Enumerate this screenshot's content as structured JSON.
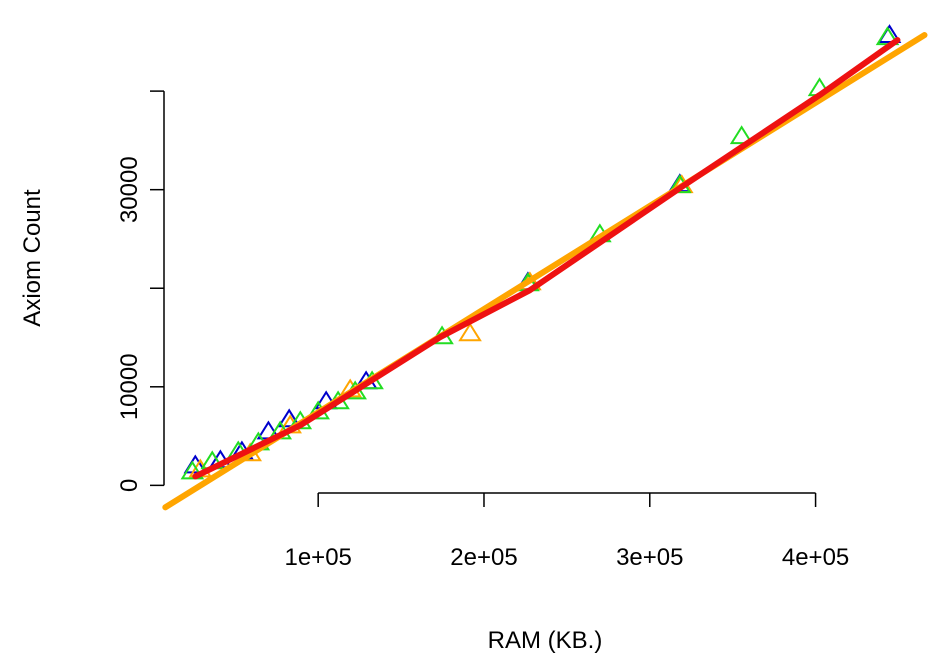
{
  "chart_data": {
    "type": "scatter",
    "x_label": "RAM (KB.)",
    "y_label": "Axiom Count",
    "xlim": [
      7000,
      466000
    ],
    "ylim": [
      -2500,
      46200
    ],
    "xticks": [
      {
        "value": 100000,
        "label": "1e+05"
      },
      {
        "value": 200000,
        "label": "2e+05"
      },
      {
        "value": 300000,
        "label": "3e+05"
      },
      {
        "value": 400000,
        "label": "4e+05"
      }
    ],
    "yticks": [
      0,
      10000,
      {
        "value": 20000,
        "label": null
      },
      30000,
      {
        "value": 40000,
        "label": null
      }
    ],
    "marker": "triangle",
    "series": [
      {
        "color": "#0000cc",
        "x": [
          25900,
          41000,
          54000,
          70000,
          82500,
          104800,
          128900,
          226500,
          318100,
          444600
        ],
        "values": [
          1930,
          2440,
          3350,
          5380,
          6600,
          8430,
          10460,
          20510,
          30460,
          45590
        ]
      },
      {
        "color": "#ffa500",
        "x": [
          28900,
          59000,
          83100,
          119300,
          191600,
          227700,
          319300
        ],
        "values": [
          1520,
          3150,
          5990,
          9640,
          15330,
          20510,
          30360
        ]
      },
      {
        "color": "#22dd22",
        "x": [
          24100,
          36100,
          51800,
          63900,
          77100,
          89200,
          100000,
          112000,
          122300,
          132500,
          174700,
          226500,
          269900,
          318100,
          355400,
          402400,
          443400
        ],
        "values": [
          1320,
          2340,
          3350,
          4260,
          5380,
          6400,
          7410,
          8430,
          9440,
          10460,
          15030,
          20410,
          25380,
          30360,
          35330,
          40200,
          45380
        ]
      }
    ],
    "lines": [
      {
        "color": "#ffa500",
        "x": [
          7800,
          465700
        ],
        "values": [
          -2230,
          45690
        ]
      },
      {
        "color": "#ee1111",
        "x": [
          25900,
          89200,
          173500,
          227700,
          318100,
          402400,
          449400
        ],
        "values": [
          910,
          6090,
          15030,
          19800,
          30150,
          39590,
          45180
        ]
      }
    ]
  }
}
